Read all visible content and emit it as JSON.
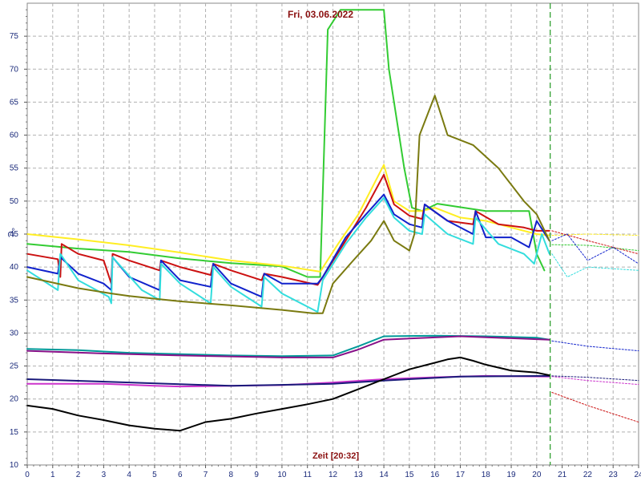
{
  "chart_data": {
    "type": "line",
    "title": "Fri, 03.06.2022",
    "ylabel": "°C",
    "time_label": "Zeit [20:32]",
    "xlim": [
      0,
      24
    ],
    "ylim": [
      10,
      80
    ],
    "x_ticks": [
      0,
      1,
      2,
      3,
      4,
      5,
      6,
      7,
      8,
      9,
      10,
      11,
      12,
      13,
      14,
      15,
      16,
      17,
      18,
      19,
      20,
      21,
      22,
      23,
      24
    ],
    "y_ticks": [
      10,
      15,
      20,
      25,
      30,
      35,
      40,
      45,
      50,
      55,
      60,
      65,
      70,
      75
    ],
    "grid": true,
    "now_marker": 20.53,
    "series": [
      {
        "color": "#33cc33",
        "style": "solid",
        "points": [
          [
            0,
            43.5
          ],
          [
            2,
            42.8
          ],
          [
            4,
            42.3
          ],
          [
            6,
            41.3
          ],
          [
            8,
            40.6
          ],
          [
            10,
            40.1
          ],
          [
            11,
            38.5
          ],
          [
            11.5,
            38.5
          ],
          [
            11.8,
            76
          ],
          [
            12.3,
            79
          ],
          [
            14,
            79
          ],
          [
            14.2,
            70
          ],
          [
            14.8,
            55
          ],
          [
            15.1,
            49
          ],
          [
            15.5,
            48.5
          ],
          [
            16.1,
            49.6
          ],
          [
            18,
            48.5
          ],
          [
            19.7,
            48.5
          ],
          [
            20,
            42
          ],
          [
            20.3,
            39.5
          ]
        ]
      },
      {
        "color": "#33cc33",
        "style": "dotted",
        "points": [
          [
            20.6,
            43.4
          ],
          [
            22,
            43.3
          ],
          [
            24,
            42.5
          ]
        ]
      },
      {
        "color": "#ffee22",
        "style": "solid",
        "points": [
          [
            0,
            45
          ],
          [
            2,
            44.2
          ],
          [
            4,
            43.3
          ],
          [
            6,
            42.2
          ],
          [
            8,
            41
          ],
          [
            10,
            40.2
          ],
          [
            11.5,
            39.3
          ],
          [
            12.2,
            43.5
          ],
          [
            13,
            48
          ],
          [
            14,
            55.5
          ],
          [
            14.4,
            50
          ],
          [
            15,
            48.5
          ],
          [
            15.5,
            48.5
          ],
          [
            16,
            49
          ],
          [
            17,
            47.5
          ],
          [
            18,
            47
          ],
          [
            19,
            46
          ],
          [
            20,
            45
          ],
          [
            20.5,
            44.8
          ]
        ]
      },
      {
        "color": "#ffee22",
        "style": "dotted",
        "points": [
          [
            20.6,
            44.8
          ],
          [
            22,
            45
          ],
          [
            24,
            44.8
          ]
        ]
      },
      {
        "color": "#cc1111",
        "style": "solid",
        "points": [
          [
            0,
            42
          ],
          [
            1.2,
            41.2
          ],
          [
            1.3,
            38.5
          ],
          [
            1.35,
            43.5
          ],
          [
            2,
            42
          ],
          [
            3,
            41
          ],
          [
            3.3,
            37.5
          ],
          [
            3.35,
            42
          ],
          [
            4,
            41
          ],
          [
            5.2,
            39.5
          ],
          [
            5.25,
            41
          ],
          [
            6,
            40
          ],
          [
            7.2,
            38.8
          ],
          [
            7.3,
            40.5
          ],
          [
            8,
            39.5
          ],
          [
            9.2,
            38
          ],
          [
            9.3,
            39
          ],
          [
            10,
            38.5
          ],
          [
            11.4,
            37.3
          ],
          [
            11.6,
            38.5
          ],
          [
            12.5,
            44
          ],
          [
            13.3,
            49
          ],
          [
            14,
            54
          ],
          [
            14.4,
            49.5
          ],
          [
            15,
            47.8
          ],
          [
            15.5,
            47.3
          ],
          [
            15.6,
            49.5
          ],
          [
            16.5,
            47
          ],
          [
            17.5,
            46.5
          ],
          [
            17.6,
            48.5
          ],
          [
            18.5,
            46.5
          ],
          [
            19.5,
            46
          ],
          [
            20,
            45.5
          ],
          [
            20.5,
            45.5
          ]
        ]
      },
      {
        "color": "#cc1111",
        "style": "dotted",
        "points": [
          [
            20.6,
            45.5
          ],
          [
            22,
            44
          ],
          [
            24,
            42
          ]
        ]
      },
      {
        "color": "#1122cc",
        "style": "solid",
        "points": [
          [
            0,
            40
          ],
          [
            1.2,
            39
          ],
          [
            1.3,
            41.5
          ],
          [
            2,
            39
          ],
          [
            3,
            37.5
          ],
          [
            3.3,
            36.5
          ],
          [
            3.35,
            41.5
          ],
          [
            4,
            38.5
          ],
          [
            5.2,
            36.5
          ],
          [
            5.25,
            41
          ],
          [
            6,
            38
          ],
          [
            7.2,
            37
          ],
          [
            7.3,
            40.5
          ],
          [
            8,
            37.5
          ],
          [
            9.2,
            35.5
          ],
          [
            9.3,
            39
          ],
          [
            10,
            37.5
          ],
          [
            11.4,
            37.5
          ],
          [
            11.6,
            38.5
          ],
          [
            12.5,
            44.5
          ],
          [
            13.3,
            48
          ],
          [
            14,
            51
          ],
          [
            14.4,
            48
          ],
          [
            15,
            46.5
          ],
          [
            15.5,
            46
          ],
          [
            15.6,
            49.5
          ],
          [
            16.5,
            47
          ],
          [
            17.5,
            45
          ],
          [
            17.6,
            48.5
          ],
          [
            18,
            44.5
          ],
          [
            19,
            44.5
          ],
          [
            19.7,
            43
          ],
          [
            20,
            47
          ],
          [
            20.5,
            44
          ]
        ]
      },
      {
        "color": "#1122cc",
        "style": "dotted",
        "points": [
          [
            20.6,
            44
          ],
          [
            21.2,
            45
          ],
          [
            22,
            41
          ],
          [
            23,
            43
          ],
          [
            24,
            40.5
          ]
        ]
      },
      {
        "color": "#33dddd",
        "style": "solid",
        "points": [
          [
            0,
            39.5
          ],
          [
            1.2,
            36.5
          ],
          [
            1.3,
            42
          ],
          [
            2,
            38
          ],
          [
            3.2,
            35.5
          ],
          [
            3.3,
            34.5
          ],
          [
            3.35,
            41.5
          ],
          [
            4.5,
            36.5
          ],
          [
            5.2,
            35
          ],
          [
            5.25,
            40.5
          ],
          [
            6,
            37.5
          ],
          [
            7.2,
            34.5
          ],
          [
            7.3,
            40
          ],
          [
            8,
            37
          ],
          [
            9.2,
            34
          ],
          [
            9.3,
            38.5
          ],
          [
            10,
            36
          ],
          [
            11.4,
            33.2
          ],
          [
            11.6,
            38
          ],
          [
            12.5,
            43.5
          ],
          [
            13.3,
            47.5
          ],
          [
            14,
            50.5
          ],
          [
            14.4,
            47.5
          ],
          [
            15,
            45.5
          ],
          [
            15.5,
            45
          ],
          [
            15.6,
            48
          ],
          [
            16.5,
            45
          ],
          [
            17.5,
            43.5
          ],
          [
            17.6,
            47.5
          ],
          [
            18.5,
            43.5
          ],
          [
            19.5,
            42
          ],
          [
            19.9,
            40.5
          ],
          [
            20.2,
            45
          ],
          [
            20.5,
            42
          ]
        ]
      },
      {
        "color": "#33dddd",
        "style": "dotted",
        "points": [
          [
            20.6,
            42
          ],
          [
            21.2,
            38.5
          ],
          [
            22,
            40
          ],
          [
            24,
            39.5
          ]
        ]
      },
      {
        "color": "#7a7a10",
        "style": "solid",
        "points": [
          [
            0,
            38.5
          ],
          [
            2,
            36.8
          ],
          [
            3.3,
            36
          ],
          [
            4,
            35.6
          ],
          [
            5,
            35.2
          ],
          [
            6,
            34.8
          ],
          [
            8,
            34.2
          ],
          [
            10,
            33.5
          ],
          [
            11.2,
            33
          ],
          [
            11.6,
            33
          ],
          [
            12,
            37.5
          ],
          [
            12.8,
            41
          ],
          [
            13.5,
            44
          ],
          [
            14,
            47
          ],
          [
            14.4,
            44
          ],
          [
            15,
            42.5
          ],
          [
            15.2,
            45
          ],
          [
            15.4,
            60
          ],
          [
            16,
            66
          ],
          [
            16.5,
            60
          ],
          [
            17.5,
            58.5
          ],
          [
            18.5,
            55
          ],
          [
            19.5,
            50
          ],
          [
            20,
            48
          ],
          [
            20.5,
            44
          ]
        ]
      },
      {
        "color": "#009999",
        "style": "solid",
        "points": [
          [
            0,
            27.6
          ],
          [
            2,
            27.4
          ],
          [
            4,
            27
          ],
          [
            6,
            26.8
          ],
          [
            8,
            26.6
          ],
          [
            10,
            26.5
          ],
          [
            12,
            26.6
          ],
          [
            13,
            28
          ],
          [
            14,
            29.5
          ],
          [
            16,
            29.6
          ],
          [
            18,
            29.5
          ],
          [
            20,
            29.3
          ],
          [
            20.5,
            29
          ]
        ]
      },
      {
        "color": "#1122cc",
        "style": "dotted",
        "points": [
          [
            20.6,
            28.8
          ],
          [
            22,
            28
          ],
          [
            24,
            27.3
          ]
        ]
      },
      {
        "color": "#881188",
        "style": "solid",
        "points": [
          [
            0,
            27.3
          ],
          [
            3,
            26.9
          ],
          [
            6,
            26.6
          ],
          [
            10,
            26.3
          ],
          [
            12,
            26.3
          ],
          [
            13,
            27.5
          ],
          [
            14,
            29
          ],
          [
            17,
            29.5
          ],
          [
            20.5,
            29
          ]
        ]
      },
      {
        "color": "#cc33cc",
        "style": "solid",
        "points": [
          [
            0,
            22.3
          ],
          [
            3,
            22.3
          ],
          [
            5,
            22
          ],
          [
            6,
            21.9
          ],
          [
            8,
            22
          ],
          [
            10,
            22.1
          ],
          [
            12,
            22.5
          ],
          [
            14,
            23
          ],
          [
            16,
            23.3
          ],
          [
            18,
            23.5
          ],
          [
            20.5,
            23.4
          ]
        ]
      },
      {
        "color": "#cc33cc",
        "style": "dotted",
        "points": [
          [
            20.6,
            23.4
          ],
          [
            22,
            22.8
          ],
          [
            24,
            22.2
          ]
        ]
      },
      {
        "color": "#1a1a7a",
        "style": "solid",
        "points": [
          [
            0,
            23
          ],
          [
            4,
            22.5
          ],
          [
            8,
            22
          ],
          [
            12,
            22.3
          ],
          [
            14,
            22.8
          ],
          [
            17,
            23.4
          ],
          [
            20.5,
            23.5
          ]
        ]
      },
      {
        "color": "#1a1a7a",
        "style": "dotted",
        "points": [
          [
            20.6,
            23.5
          ],
          [
            22,
            23.3
          ],
          [
            24,
            22.8
          ]
        ]
      },
      {
        "color": "#000000",
        "style": "solid",
        "points": [
          [
            0,
            19
          ],
          [
            1,
            18.5
          ],
          [
            2,
            17.5
          ],
          [
            3,
            16.8
          ],
          [
            4,
            16
          ],
          [
            5,
            15.5
          ],
          [
            6,
            15.2
          ],
          [
            7,
            16.5
          ],
          [
            8,
            17
          ],
          [
            9,
            17.8
          ],
          [
            10,
            18.5
          ],
          [
            11,
            19.2
          ],
          [
            12,
            20
          ],
          [
            13,
            21.5
          ],
          [
            14,
            23
          ],
          [
            15,
            24.5
          ],
          [
            16,
            25.5
          ],
          [
            16.5,
            26
          ],
          [
            17,
            26.3
          ],
          [
            17.5,
            25.8
          ],
          [
            18,
            25.2
          ],
          [
            19,
            24.3
          ],
          [
            20,
            24
          ],
          [
            20.5,
            23.6
          ]
        ]
      },
      {
        "color": "#cc1111",
        "style": "dotted",
        "points": [
          [
            20.6,
            21
          ],
          [
            22,
            19
          ],
          [
            24,
            16.5
          ]
        ]
      }
    ]
  }
}
